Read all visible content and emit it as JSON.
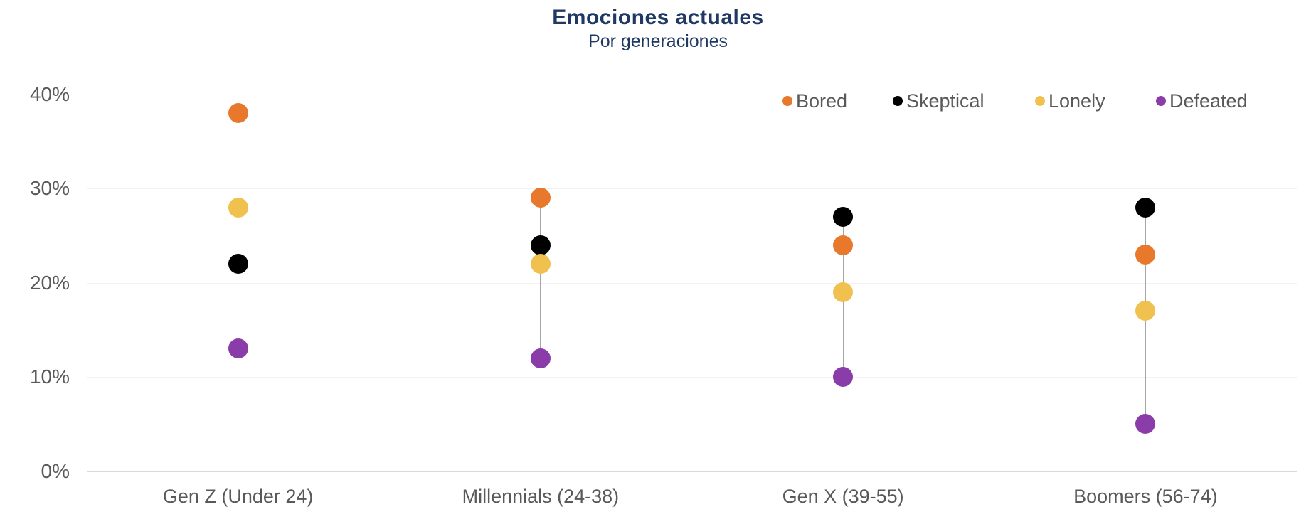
{
  "page": {
    "background": "#FFFFFF"
  },
  "chart_data": {
    "type": "scatter",
    "variant": "dot-plot-with-highlow-lines",
    "title": "Emociones actuales",
    "subtitle": "Por generaciones",
    "title_color": "#1F3864",
    "text_color": "#595959",
    "categories": [
      "Gen Z (Under 24)",
      "Millennials (24-38)",
      "Gen X (39-55)",
      "Boomers (56-74)"
    ],
    "series": [
      {
        "name": "Bored",
        "color": "#E8782B",
        "values": [
          38,
          29,
          24,
          23
        ]
      },
      {
        "name": "Skeptical",
        "color": "#000000",
        "values": [
          22,
          24,
          27,
          28
        ]
      },
      {
        "name": "Lonely",
        "color": "#F0C14F",
        "values": [
          28,
          22,
          19,
          17
        ]
      },
      {
        "name": "Defeated",
        "color": "#8A3CA8",
        "values": [
          13,
          12,
          10,
          5
        ]
      }
    ],
    "ylim": [
      0,
      40
    ],
    "yticks": [
      0,
      10,
      20,
      30,
      40
    ],
    "ytick_labels": [
      "0%",
      "10%",
      "20%",
      "30%",
      "40%"
    ],
    "grid": true,
    "legend_position": "top-right",
    "gridline_color": "#F2F2F2",
    "axis_line_color": "#D9D9D9",
    "connector_color": "#A6A6A6"
  }
}
